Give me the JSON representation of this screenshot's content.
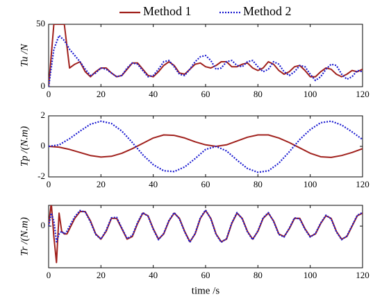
{
  "chart_data": [
    {
      "type": "line",
      "ylabel": "Tu /N",
      "legend": "top",
      "x": [
        0,
        2,
        4,
        6,
        8,
        10,
        12,
        14,
        16,
        18,
        20,
        22,
        24,
        26,
        28,
        30,
        32,
        34,
        36,
        38,
        40,
        42,
        44,
        46,
        48,
        50,
        52,
        54,
        56,
        58,
        60,
        62,
        64,
        66,
        68,
        70,
        72,
        74,
        76,
        78,
        80,
        82,
        84,
        86,
        88,
        90,
        92,
        94,
        96,
        98,
        100,
        102,
        104,
        106,
        108,
        110,
        112,
        114,
        116,
        118,
        120
      ],
      "xlim": [
        0,
        120
      ],
      "xticks": [
        0,
        20,
        40,
        60,
        80,
        100,
        120
      ],
      "ylim": [
        0,
        50
      ],
      "yticks": [
        0,
        50
      ],
      "series": [
        {
          "name": "Method 1",
          "color": "#a0201c",
          "style": "solid",
          "values": [
            0,
            50,
            50,
            50,
            15,
            18,
            20,
            12,
            8,
            12,
            15,
            15,
            11,
            8,
            9,
            14,
            19,
            19,
            14,
            9,
            8,
            12,
            17,
            20,
            17,
            11,
            10,
            14,
            18,
            19,
            16,
            15,
            17,
            20,
            20,
            16,
            16,
            18,
            19,
            15,
            13,
            15,
            20,
            18,
            13,
            10,
            12,
            16,
            17,
            13,
            8,
            8,
            12,
            15,
            14,
            10,
            8,
            10,
            13,
            12,
            14
          ]
        },
        {
          "name": "Method 2",
          "color": "#1a1ad0",
          "style": "dotted",
          "values": [
            0,
            30,
            41,
            37,
            30,
            25,
            20,
            14,
            9,
            11,
            15,
            14,
            11,
            8,
            9,
            15,
            19,
            18,
            13,
            8,
            9,
            14,
            20,
            21,
            16,
            10,
            9,
            14,
            20,
            24,
            25,
            21,
            14,
            15,
            20,
            21,
            17,
            16,
            20,
            21,
            16,
            12,
            14,
            20,
            18,
            12,
            9,
            12,
            17,
            16,
            10,
            5,
            8,
            14,
            18,
            17,
            10,
            6,
            8,
            13,
            12
          ]
        }
      ]
    },
    {
      "type": "line",
      "ylabel": "Tp /(N.m)",
      "x": [
        0,
        4,
        8,
        12,
        16,
        20,
        24,
        28,
        32,
        36,
        40,
        44,
        48,
        52,
        56,
        60,
        64,
        68,
        72,
        76,
        80,
        84,
        88,
        92,
        96,
        100,
        104,
        108,
        112,
        116,
        120
      ],
      "xlim": [
        0,
        120
      ],
      "xticks": [
        0,
        20,
        40,
        60,
        80,
        100,
        120
      ],
      "ylim": [
        -2,
        2
      ],
      "yticks": [
        -2,
        0,
        2
      ],
      "series": [
        {
          "name": "Method 1",
          "color": "#a0201c",
          "style": "solid",
          "values": [
            0,
            -0.05,
            -0.2,
            -0.4,
            -0.6,
            -0.7,
            -0.65,
            -0.45,
            -0.15,
            0.2,
            0.55,
            0.75,
            0.72,
            0.55,
            0.3,
            0.1,
            0.0,
            0.1,
            0.35,
            0.6,
            0.75,
            0.75,
            0.55,
            0.25,
            -0.1,
            -0.45,
            -0.68,
            -0.72,
            -0.6,
            -0.4,
            -0.15
          ]
        },
        {
          "name": "Method 2",
          "color": "#1a1ad0",
          "style": "dotted",
          "values": [
            0,
            0.1,
            0.5,
            1.0,
            1.45,
            1.65,
            1.5,
            1.0,
            0.25,
            -0.55,
            -1.2,
            -1.6,
            -1.65,
            -1.35,
            -0.8,
            -0.2,
            0.0,
            -0.3,
            -0.9,
            -1.45,
            -1.7,
            -1.6,
            -1.1,
            -0.35,
            0.45,
            1.1,
            1.55,
            1.65,
            1.4,
            0.95,
            0.45
          ]
        }
      ]
    },
    {
      "type": "line",
      "ylabel": "Tr /(N.m)",
      "xlabel": "time /s",
      "x": [
        0,
        1,
        2,
        3,
        4,
        5,
        6,
        7,
        8,
        10,
        12,
        14,
        16,
        18,
        20,
        22,
        24,
        26,
        28,
        30,
        32,
        34,
        36,
        38,
        40,
        42,
        44,
        46,
        48,
        50,
        52,
        54,
        56,
        58,
        60,
        62,
        64,
        66,
        68,
        70,
        72,
        74,
        76,
        78,
        80,
        82,
        84,
        86,
        88,
        90,
        92,
        94,
        96,
        98,
        100,
        102,
        104,
        106,
        108,
        110,
        112,
        114,
        116,
        118,
        120
      ],
      "xlim": [
        0,
        120
      ],
      "xticks": [
        0,
        20,
        40,
        60,
        80,
        100,
        120
      ],
      "ylim": [
        -8,
        4
      ],
      "yticks": [
        0
      ],
      "series": [
        {
          "name": "Method 1",
          "color": "#a0201c",
          "style": "solid",
          "values": [
            0,
            4.5,
            -2,
            -7,
            2.5,
            -1,
            -1.5,
            -1.5,
            -0.5,
            1.5,
            2.8,
            2.8,
            1,
            -1.5,
            -2.5,
            -1,
            1.5,
            1.5,
            -0.5,
            -2.5,
            -2,
            0.5,
            2.5,
            2,
            -0.5,
            -2.5,
            -1.5,
            1,
            2.5,
            1.5,
            -1,
            -3,
            -1.5,
            1.5,
            3,
            1.5,
            -1.5,
            -3,
            -2.5,
            0.5,
            2.5,
            1.5,
            -1,
            -2.5,
            -1,
            1.5,
            2.5,
            1,
            -1.5,
            -2,
            -0.5,
            1.5,
            1.5,
            -0.5,
            -2,
            -1.5,
            0.5,
            2,
            1.5,
            -1,
            -2.5,
            -2,
            0,
            2,
            2.5
          ]
        },
        {
          "name": "Method 2",
          "color": "#1a1ad0",
          "style": "dotted",
          "values": [
            0,
            2.5,
            1,
            -3,
            -1.5,
            -1,
            -1.5,
            -1,
            0,
            1.8,
            3,
            2.7,
            0.8,
            -1.6,
            -2.5,
            -0.8,
            1.6,
            1.7,
            -0.4,
            -2.4,
            -1.8,
            0.7,
            2.6,
            1.9,
            -0.6,
            -2.6,
            -1.4,
            1.1,
            2.6,
            1.4,
            -1.1,
            -3.1,
            -1.4,
            1.6,
            3.1,
            1.4,
            -1.6,
            -3.1,
            -2.4,
            0.6,
            2.6,
            1.4,
            -1.1,
            -2.6,
            -0.9,
            1.6,
            2.6,
            0.9,
            -1.6,
            -2.1,
            -0.4,
            1.6,
            1.4,
            -0.6,
            -2.1,
            -1.4,
            0.6,
            2.1,
            1.4,
            -1.1,
            -2.6,
            -1.9,
            0.1,
            2.1,
            2.6
          ]
        }
      ]
    }
  ]
}
